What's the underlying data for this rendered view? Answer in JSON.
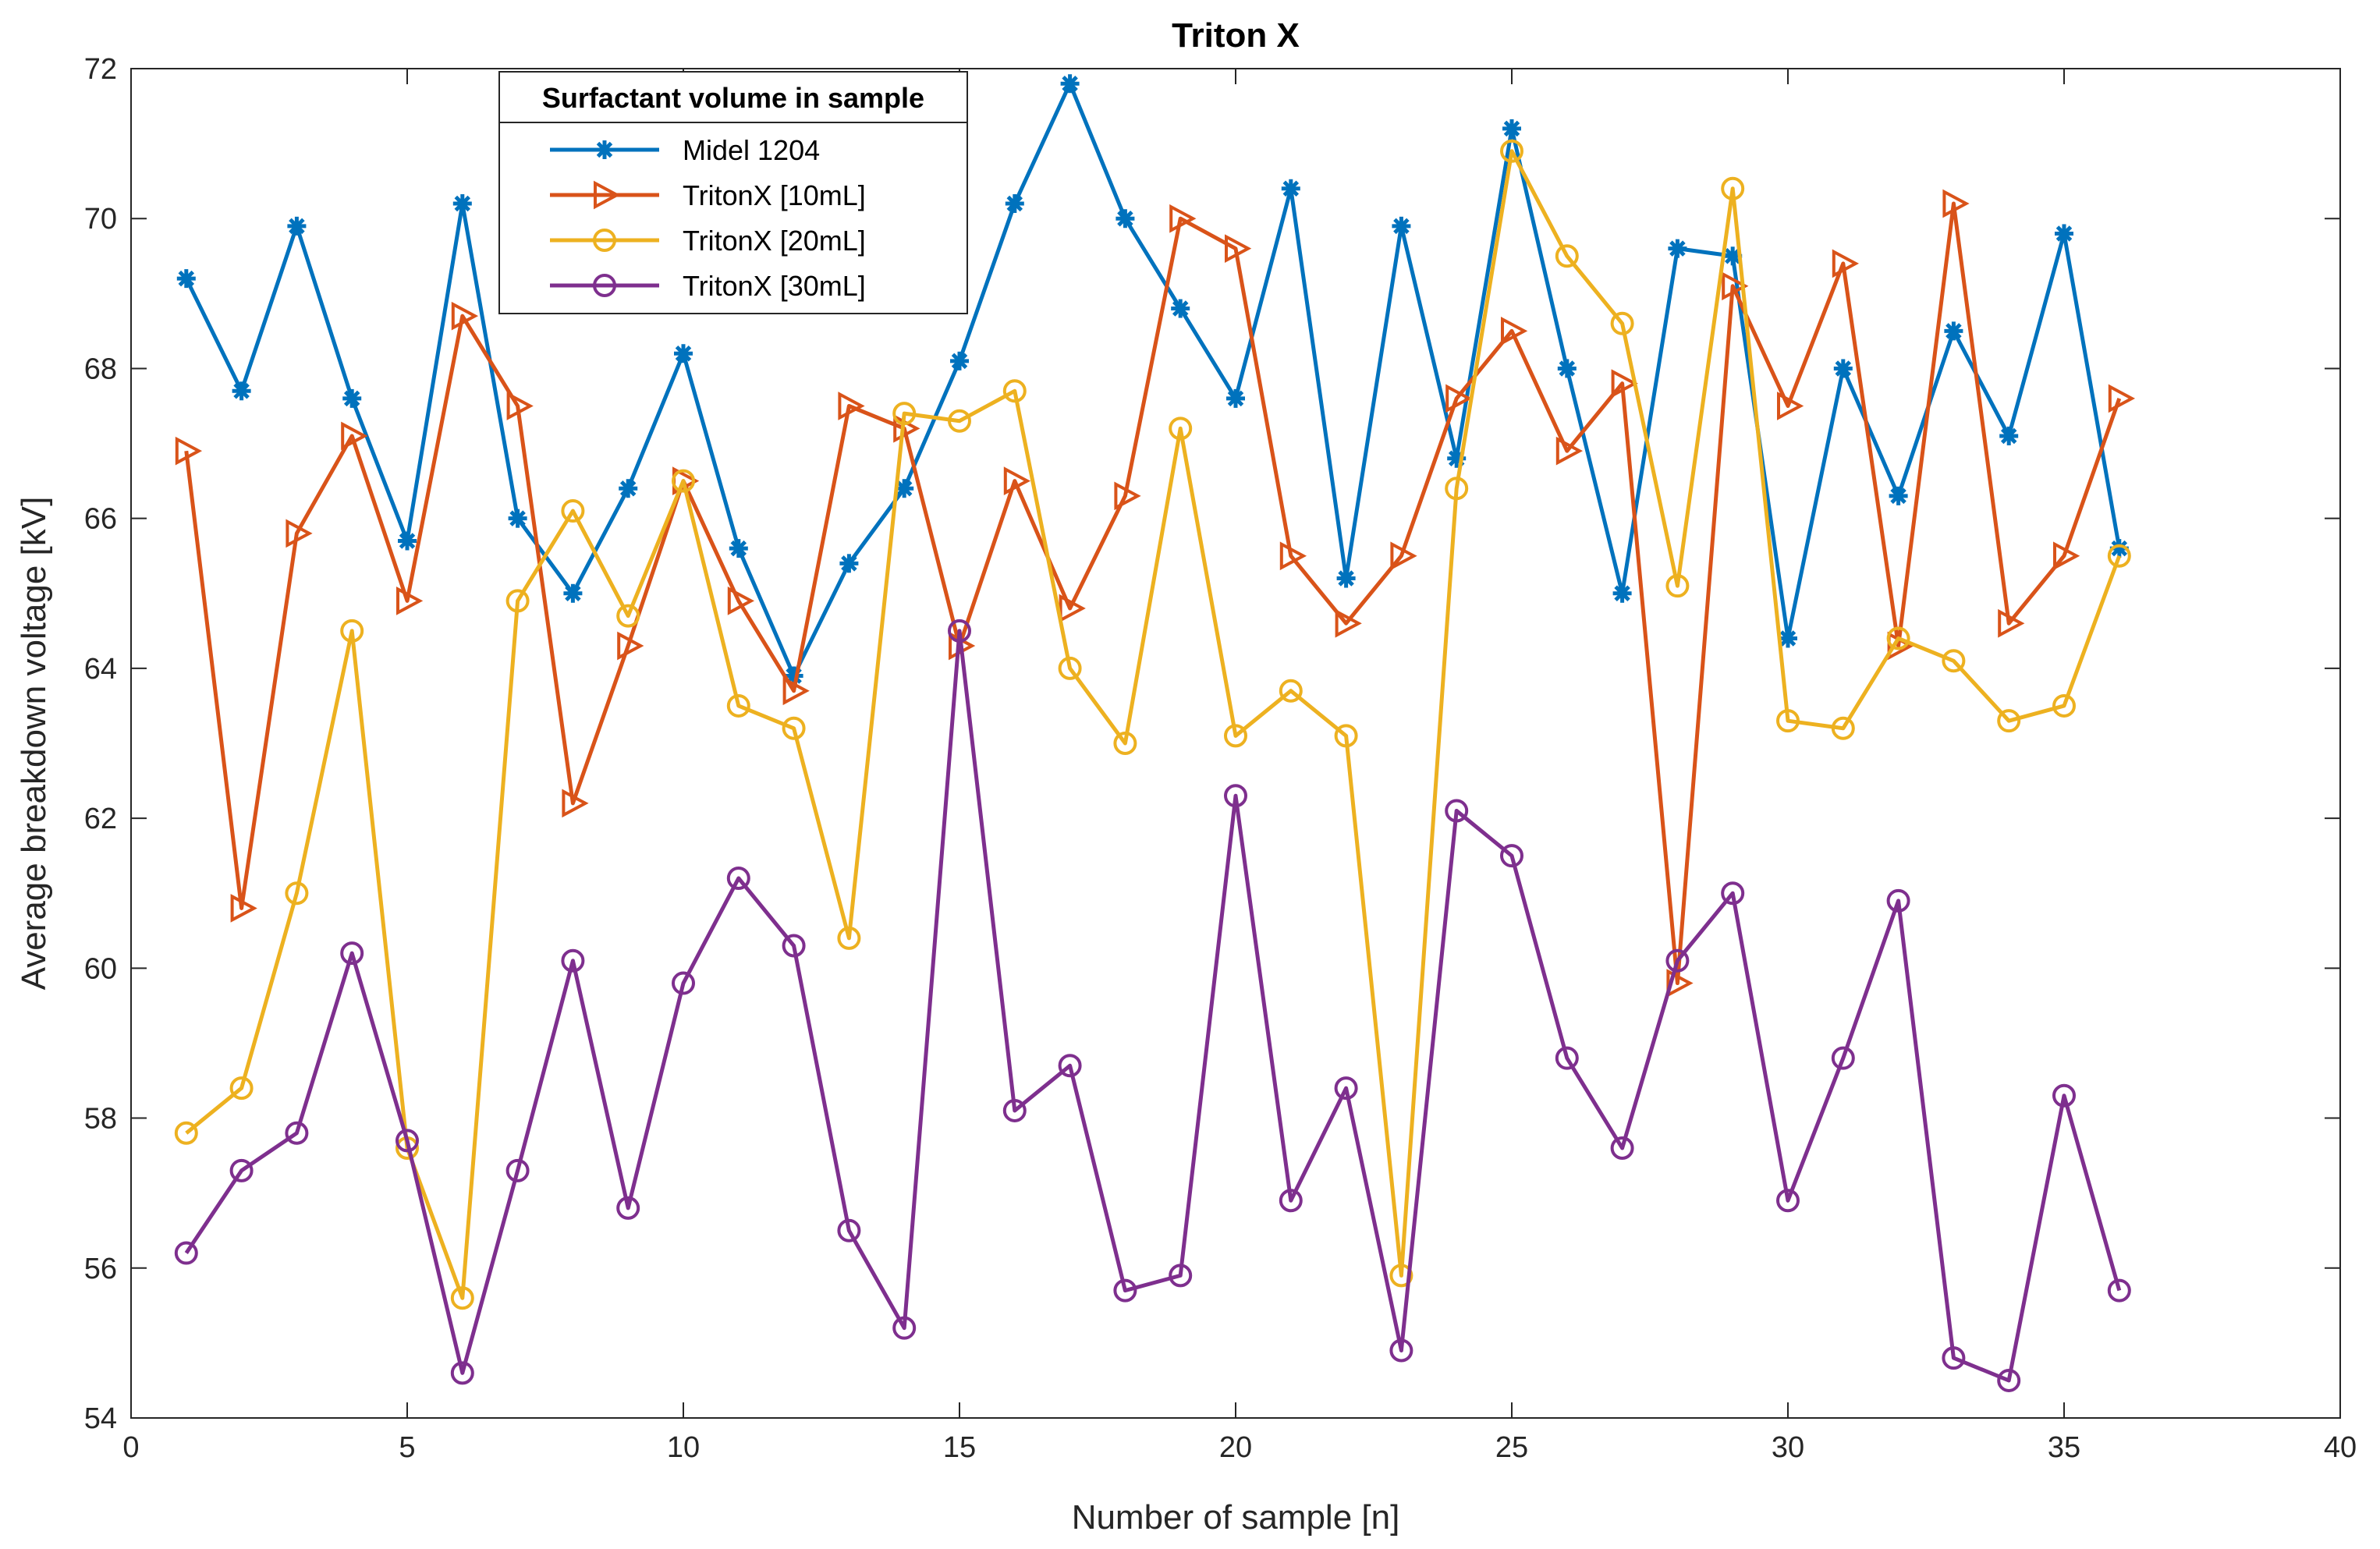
{
  "chart_data": {
    "type": "line",
    "title": "Triton X",
    "xlabel": "Number of sample [n]",
    "ylabel": "Average breakdown voltage [kV]",
    "xlim": [
      0,
      40
    ],
    "ylim": [
      54,
      72
    ],
    "xticks": [
      0,
      5,
      10,
      15,
      20,
      25,
      30,
      35,
      40
    ],
    "yticks": [
      54,
      56,
      58,
      60,
      62,
      64,
      66,
      68,
      70,
      72
    ],
    "grid": false,
    "legend_title": "Surfactant volume in sample",
    "legend_position": "top-left",
    "x": [
      1,
      2,
      3,
      4,
      5,
      6,
      7,
      8,
      9,
      10,
      11,
      12,
      13,
      14,
      15,
      16,
      17,
      18,
      19,
      20,
      21,
      22,
      23,
      24,
      25,
      26,
      27,
      28,
      29,
      30,
      31,
      32,
      33,
      34,
      35,
      36
    ],
    "series": [
      {
        "name": "Midel 1204",
        "color": "#0072BD",
        "marker": "asterisk",
        "values": [
          69.2,
          67.7,
          69.9,
          67.6,
          65.7,
          70.2,
          66.0,
          65.0,
          66.4,
          68.2,
          65.6,
          63.9,
          65.4,
          66.4,
          68.1,
          70.2,
          71.8,
          70.0,
          68.8,
          67.6,
          70.4,
          65.2,
          69.9,
          66.8,
          71.2,
          68.0,
          65.0,
          69.6,
          69.5,
          64.4,
          68.0,
          66.3,
          68.5,
          67.1,
          69.8,
          65.6
        ]
      },
      {
        "name": "TritonX [10mL]",
        "color": "#D95319",
        "marker": "triangle-right",
        "values": [
          66.9,
          60.8,
          65.8,
          67.1,
          64.9,
          68.7,
          67.5,
          62.2,
          64.3,
          66.5,
          64.9,
          63.7,
          67.5,
          67.2,
          64.3,
          66.5,
          64.8,
          66.3,
          70.0,
          69.6,
          65.5,
          64.6,
          65.5,
          67.6,
          68.5,
          66.9,
          67.8,
          59.8,
          69.1,
          67.5,
          69.4,
          64.3,
          70.2,
          64.6,
          65.5,
          67.6
        ]
      },
      {
        "name": "TritonX [20mL]",
        "color": "#EDB120",
        "marker": "circle",
        "values": [
          57.8,
          58.4,
          61.0,
          64.5,
          57.6,
          55.6,
          64.9,
          66.1,
          64.7,
          66.5,
          63.5,
          63.2,
          60.4,
          67.4,
          67.3,
          67.7,
          64.0,
          63.0,
          67.2,
          63.1,
          63.7,
          63.1,
          55.9,
          66.4,
          70.9,
          69.5,
          68.6,
          65.1,
          70.4,
          63.3,
          63.2,
          64.4,
          64.1,
          63.3,
          63.5,
          65.5
        ]
      },
      {
        "name": "TritonX [30mL]",
        "color": "#7E2F8E",
        "marker": "circle",
        "values": [
          56.2,
          57.3,
          57.8,
          60.2,
          57.7,
          54.6,
          57.3,
          60.1,
          56.8,
          59.8,
          61.2,
          60.3,
          56.5,
          55.2,
          64.5,
          58.1,
          58.7,
          55.7,
          55.9,
          62.3,
          56.9,
          58.4,
          54.9,
          62.1,
          61.5,
          58.8,
          57.6,
          60.1,
          61.0,
          56.9,
          58.8,
          60.9,
          54.8,
          54.5,
          58.3,
          55.7
        ]
      }
    ]
  }
}
